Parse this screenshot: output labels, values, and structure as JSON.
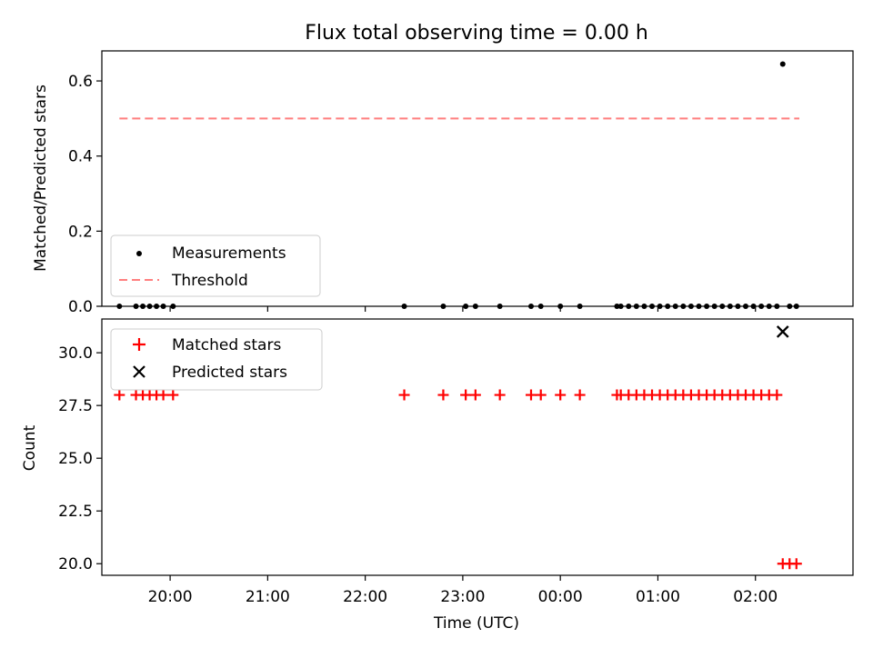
{
  "chart_data": [
    {
      "type": "scatter",
      "title": "Flux total observing time = 0.00 h",
      "xlabel": "",
      "ylabel": "Matched/Predicted stars",
      "xlim": [
        19.3,
        27.0
      ],
      "ylim": [
        0.0,
        0.68
      ],
      "yticks": [
        0.0,
        0.2,
        0.4,
        0.6
      ],
      "ytick_labels": [
        "0.0",
        "0.2",
        "0.4",
        "0.6"
      ],
      "legend_position": "lower-left",
      "series": [
        {
          "name": "Measurements",
          "marker": "dot",
          "color": "#000000",
          "x": [
            19.48,
            19.65,
            19.72,
            19.79,
            19.86,
            19.93,
            20.03,
            22.4,
            22.8,
            23.03,
            23.13,
            23.38,
            23.7,
            23.8,
            24.0,
            24.2,
            24.58,
            24.62,
            24.7,
            24.78,
            24.86,
            24.94,
            25.02,
            25.1,
            25.18,
            25.26,
            25.34,
            25.42,
            25.5,
            25.58,
            25.66,
            25.74,
            25.82,
            25.9,
            25.98,
            26.06,
            26.14,
            26.22,
            26.28,
            26.35,
            26.42
          ],
          "y": [
            0,
            0,
            0,
            0,
            0,
            0,
            0,
            0,
            0,
            0,
            0,
            0,
            0,
            0,
            0,
            0,
            0,
            0,
            0,
            0,
            0,
            0,
            0,
            0,
            0,
            0,
            0,
            0,
            0,
            0,
            0,
            0,
            0,
            0,
            0,
            0,
            0,
            0,
            0.645,
            0,
            0
          ]
        },
        {
          "name": "Threshold",
          "marker": "dashed-line",
          "color": "#ff7f7f",
          "x": [
            19.48,
            26.45
          ],
          "y": [
            0.5,
            0.5
          ]
        }
      ]
    },
    {
      "type": "scatter",
      "title": "",
      "xlabel": "Time (UTC)",
      "ylabel": "Count",
      "xlim": [
        19.3,
        27.0
      ],
      "ylim": [
        19.45,
        31.6
      ],
      "yticks": [
        20.0,
        22.5,
        25.0,
        27.5,
        30.0
      ],
      "ytick_labels": [
        "20.0",
        "22.5",
        "25.0",
        "27.5",
        "30.0"
      ],
      "xticks": [
        20,
        21,
        22,
        23,
        24,
        25,
        26
      ],
      "xtick_labels": [
        "20:00",
        "21:00",
        "22:00",
        "23:00",
        "00:00",
        "01:00",
        "02:00"
      ],
      "legend_position": "upper-left",
      "series": [
        {
          "name": "Matched stars",
          "marker": "plus",
          "color": "#ff0000",
          "x": [
            19.48,
            19.65,
            19.72,
            19.79,
            19.86,
            19.93,
            20.03,
            22.4,
            22.8,
            23.03,
            23.13,
            23.38,
            23.7,
            23.8,
            24.0,
            24.2,
            24.58,
            24.62,
            24.7,
            24.78,
            24.86,
            24.94,
            25.02,
            25.1,
            25.18,
            25.26,
            25.34,
            25.42,
            25.5,
            25.58,
            25.66,
            25.74,
            25.82,
            25.9,
            25.98,
            26.06,
            26.14,
            26.22,
            26.28,
            26.35,
            26.42
          ],
          "y": [
            28,
            28,
            28,
            28,
            28,
            28,
            28,
            28,
            28,
            28,
            28,
            28,
            28,
            28,
            28,
            28,
            28,
            28,
            28,
            28,
            28,
            28,
            28,
            28,
            28,
            28,
            28,
            28,
            28,
            28,
            28,
            28,
            28,
            28,
            28,
            28,
            28,
            28,
            20,
            20,
            20
          ]
        },
        {
          "name": "Predicted stars",
          "marker": "x",
          "color": "#000000",
          "x": [
            26.28
          ],
          "y": [
            31
          ]
        }
      ]
    }
  ]
}
